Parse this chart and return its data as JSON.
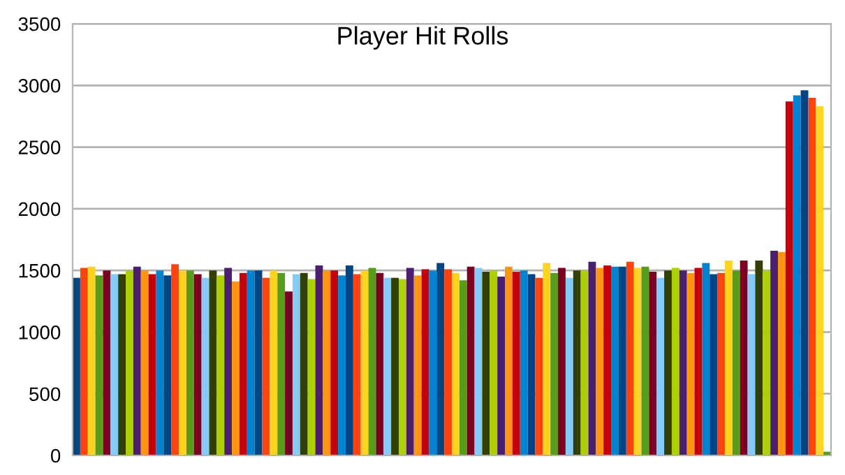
{
  "chart_data": {
    "type": "bar",
    "title": "Player Hit Rolls",
    "categories": [
      null,
      null,
      null,
      null,
      null,
      null,
      null,
      null,
      null,
      null,
      null,
      null,
      null,
      null,
      null,
      null,
      null,
      null,
      null,
      null,
      null,
      null,
      null,
      null,
      null,
      null,
      null,
      null,
      null,
      null,
      null,
      null,
      null,
      null,
      null,
      null,
      null,
      null,
      null,
      null,
      null,
      null,
      null,
      null,
      null,
      null,
      null,
      null,
      null,
      null,
      null,
      null,
      null,
      null,
      null,
      null,
      null,
      null,
      null,
      null,
      null,
      null,
      null,
      null,
      null,
      null,
      null,
      null,
      null,
      null,
      null,
      null,
      null,
      null,
      null,
      null,
      null,
      null,
      null,
      null,
      null,
      null,
      null,
      null,
      null,
      null,
      null,
      null,
      null,
      null,
      null,
      null,
      null,
      null,
      null,
      null,
      null,
      null,
      null,
      null
    ],
    "values": [
      1440,
      1520,
      1530,
      1460,
      1500,
      1470,
      1470,
      1500,
      1530,
      1500,
      1470,
      1500,
      1460,
      1550,
      1500,
      1500,
      1470,
      1440,
      1500,
      1460,
      1520,
      1410,
      1480,
      1500,
      1500,
      1440,
      1500,
      1480,
      1330,
      1470,
      1480,
      1430,
      1540,
      1500,
      1500,
      1460,
      1540,
      1470,
      1500,
      1520,
      1480,
      1440,
      1440,
      1430,
      1520,
      1460,
      1510,
      1500,
      1560,
      1510,
      1480,
      1420,
      1530,
      1520,
      1490,
      1500,
      1450,
      1530,
      1490,
      1500,
      1470,
      1440,
      1560,
      1480,
      1520,
      1440,
      1500,
      1500,
      1570,
      1520,
      1540,
      1530,
      1530,
      1570,
      1520,
      1530,
      1490,
      1440,
      1500,
      1520,
      1500,
      1480,
      1520,
      1560,
      1470,
      1480,
      1580,
      1500,
      1580,
      1470,
      1580,
      1500,
      1660,
      1650,
      2870,
      2920,
      2960,
      2900,
      2830,
      30
    ],
    "colors": [
      "#004586",
      "#ff420e",
      "#ffd320",
      "#579d1c",
      "#7e0021",
      "#83caff",
      "#314004",
      "#aecf00",
      "#4b1f6f",
      "#ff950e",
      "#c5000b",
      "#0084d1",
      "#004586",
      "#ff420e",
      "#ffd320",
      "#579d1c",
      "#7e0021",
      "#83caff",
      "#314004",
      "#aecf00",
      "#4b1f6f",
      "#ff950e",
      "#c5000b",
      "#0084d1",
      "#004586",
      "#ff420e",
      "#ffd320",
      "#579d1c",
      "#7e0021",
      "#83caff",
      "#314004",
      "#aecf00",
      "#4b1f6f",
      "#ff950e",
      "#c5000b",
      "#0084d1",
      "#004586",
      "#ff420e",
      "#ffd320",
      "#579d1c",
      "#7e0021",
      "#83caff",
      "#314004",
      "#aecf00",
      "#4b1f6f",
      "#ff950e",
      "#c5000b",
      "#0084d1",
      "#004586",
      "#ff420e",
      "#ffd320",
      "#579d1c",
      "#7e0021",
      "#83caff",
      "#314004",
      "#aecf00",
      "#4b1f6f",
      "#ff950e",
      "#c5000b",
      "#0084d1",
      "#004586",
      "#ff420e",
      "#ffd320",
      "#579d1c",
      "#7e0021",
      "#83caff",
      "#314004",
      "#aecf00",
      "#4b1f6f",
      "#ff950e",
      "#c5000b",
      "#0084d1",
      "#004586",
      "#ff420e",
      "#ffd320",
      "#579d1c",
      "#7e0021",
      "#83caff",
      "#314004",
      "#aecf00",
      "#4b1f6f",
      "#ff950e",
      "#c5000b",
      "#0084d1",
      "#004586",
      "#ff420e",
      "#ffd320",
      "#579d1c",
      "#7e0021",
      "#83caff",
      "#314004",
      "#aecf00",
      "#4b1f6f",
      "#ff950e",
      "#c5000b",
      "#0084d1",
      "#004586",
      "#ff420e",
      "#ffd320",
      "#579d1c"
    ],
    "ylim": [
      0,
      3500
    ],
    "yticks": [
      0,
      500,
      1000,
      1500,
      2000,
      2500,
      3000,
      3500
    ],
    "grid": "y",
    "legend": false
  }
}
